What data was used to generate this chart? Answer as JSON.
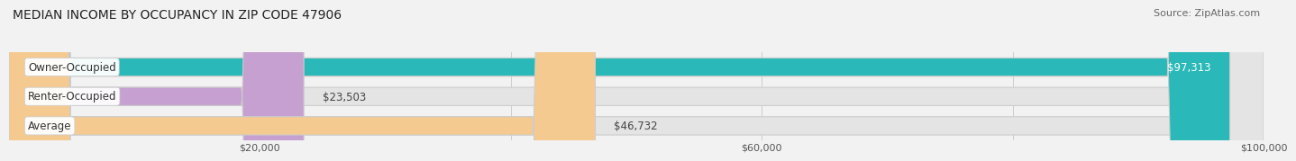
{
  "title": "MEDIAN INCOME BY OCCUPANCY IN ZIP CODE 47906",
  "source": "Source: ZipAtlas.com",
  "categories": [
    "Owner-Occupied",
    "Renter-Occupied",
    "Average"
  ],
  "values": [
    97313,
    23503,
    46732
  ],
  "bar_colors": [
    "#2ab8b8",
    "#c5a0d0",
    "#f5ca90"
  ],
  "bar_labels": [
    "$97,313",
    "$23,503",
    "$46,732"
  ],
  "xlim": [
    0,
    100000
  ],
  "xticks": [
    0,
    20000,
    40000,
    60000,
    80000,
    100000
  ],
  "xtick_labels": [
    "",
    "$20,000",
    "",
    "$60,000",
    "",
    "$100,000"
  ],
  "background_color": "#f2f2f2",
  "bar_background": "#e4e4e4",
  "title_fontsize": 10,
  "source_fontsize": 8,
  "bar_height": 0.62,
  "bar_label_fontsize": 8.5,
  "category_label_fontsize": 8.5
}
